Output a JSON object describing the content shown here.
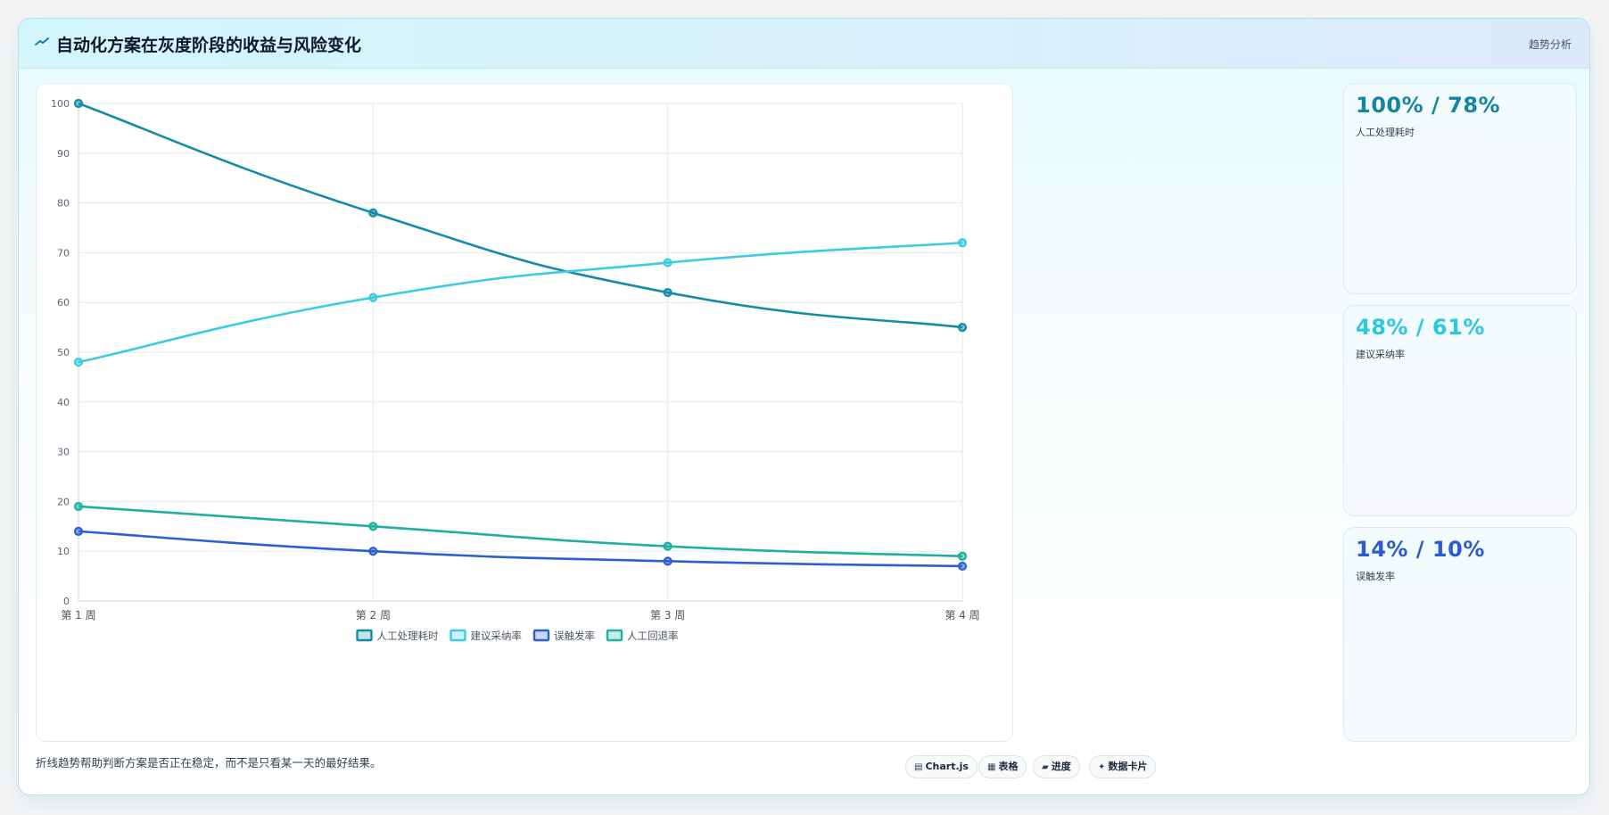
{
  "header": {
    "title": "自动化方案在灰度阶段的收益与风险变化",
    "tag": "趋势分析"
  },
  "chart_data": {
    "type": "line",
    "categories": [
      "第 1 周",
      "第 2 周",
      "第 3 周",
      "第 4 周"
    ],
    "ylim": [
      0,
      100
    ],
    "yticks": [
      0,
      10,
      20,
      30,
      40,
      50,
      60,
      70,
      80,
      90,
      100
    ],
    "grid": true,
    "legend_position": "bottom",
    "series": [
      {
        "name": "人工处理耗时",
        "values": [
          100,
          78,
          62,
          55
        ],
        "color": "#168ba6"
      },
      {
        "name": "建议采纳率",
        "values": [
          48,
          61,
          68,
          72
        ],
        "color": "#3ccbe0"
      },
      {
        "name": "误触发率",
        "values": [
          14,
          10,
          8,
          7
        ],
        "color": "#2d5fcf"
      },
      {
        "name": "人工回退率",
        "values": [
          19,
          15,
          11,
          9
        ],
        "color": "#1fb0a0"
      }
    ]
  },
  "kpis": [
    {
      "value": "100% / 78%",
      "label": "人工处理耗时",
      "color": "#16859f"
    },
    {
      "value": "48% / 61%",
      "label": "建议采纳率",
      "color": "#2cc8df"
    },
    {
      "value": "14% / 10%",
      "label": "误触发率",
      "color": "#2b5bd1"
    }
  ],
  "footer": {
    "note": "折线趋势帮助判断方案是否正在稳定，而不是只看某一天的最好结果。",
    "chips": [
      {
        "icon": "▤",
        "icon_name": "chart-icon",
        "label": "Chart.js"
      },
      {
        "icon": "▦",
        "icon_name": "table-icon",
        "label": "表格"
      },
      {
        "icon": "▰",
        "icon_name": "progress-icon",
        "label": "进度"
      },
      {
        "icon": "✦",
        "icon_name": "sparkle-icon",
        "label": "数据卡片"
      }
    ]
  }
}
